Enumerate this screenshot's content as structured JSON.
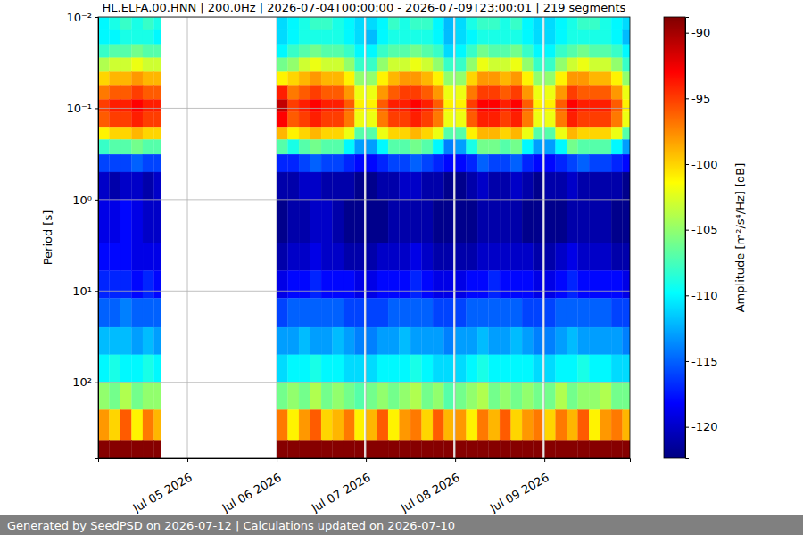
{
  "chart_data": {
    "type": "heatmap",
    "title": "HL.ELFA.00.HNN | 200.0Hz | 2026-07-04T00:00:00 - 2026-07-09T23:00:01 | 219 segments",
    "y_label": "Period [s]",
    "footer": "Generated by SeedPSD on 2026-07-12 | Calculations updated on 2026-07-10",
    "log": "y",
    "grid": true,
    "xlim": [
      "2026-07-04T00:00",
      "2026-07-09T23:00"
    ],
    "xticks": [
      {
        "value": "2026-07-05T00:00",
        "label": "Jul 05 2026"
      },
      {
        "value": "2026-07-06T00:00",
        "label": "Jul 06 2026"
      },
      {
        "value": "2026-07-07T00:00",
        "label": "Jul 07 2026"
      },
      {
        "value": "2026-07-08T00:00",
        "label": "Jul 08 2026"
      },
      {
        "value": "2026-07-09T00:00",
        "label": "Jul 09 2026"
      }
    ],
    "ylim": [
      0.01,
      680
    ],
    "yticks": [
      {
        "value": 0.01,
        "label": "10⁻²"
      },
      {
        "value": 0.1,
        "label": "10⁻¹"
      },
      {
        "value": 1,
        "label": "10⁰"
      },
      {
        "value": 10,
        "label": "10¹"
      },
      {
        "value": 100,
        "label": "10²"
      }
    ],
    "x_edges": [
      "2026-07-04T00:00",
      "2026-07-04T03:00",
      "2026-07-04T06:00",
      "2026-07-04T09:00",
      "2026-07-04T12:00",
      "2026-07-04T15:00",
      "2026-07-04T17:00",
      "2026-07-06T00:00",
      "2026-07-06T03:00",
      "2026-07-06T06:00",
      "2026-07-06T09:00",
      "2026-07-06T12:00",
      "2026-07-06T15:00",
      "2026-07-06T18:00",
      "2026-07-06T21:00",
      "2026-07-06T23:30",
      "2026-07-07T00:00",
      "2026-07-07T03:00",
      "2026-07-07T06:00",
      "2026-07-07T09:00",
      "2026-07-07T12:00",
      "2026-07-07T15:00",
      "2026-07-07T18:00",
      "2026-07-07T21:00",
      "2026-07-07T23:30",
      "2026-07-08T00:00",
      "2026-07-08T03:00",
      "2026-07-08T06:00",
      "2026-07-08T09:00",
      "2026-07-08T12:00",
      "2026-07-08T15:00",
      "2026-07-08T18:00",
      "2026-07-08T21:00",
      "2026-07-08T23:30",
      "2026-07-09T00:00",
      "2026-07-09T03:00",
      "2026-07-09T06:00",
      "2026-07-09T09:00",
      "2026-07-09T12:00",
      "2026-07-09T15:00",
      "2026-07-09T18:00",
      "2026-07-09T21:00",
      "2026-07-09T23:00"
    ],
    "y_edges": [
      0.01,
      0.014,
      0.02,
      0.028,
      0.04,
      0.056,
      0.08,
      0.11,
      0.16,
      0.22,
      0.32,
      0.5,
      1,
      3,
      6,
      12,
      25,
      50,
      100,
      200,
      440,
      680
    ],
    "cells": [
      [
        -110,
        -109,
        -108,
        -109,
        -108,
        -109,
        null,
        -111,
        -110,
        -109,
        -108,
        -108,
        -109,
        -110,
        -111,
        null,
        -111,
        -110,
        -108,
        -109,
        -108,
        -108,
        -110,
        -112,
        null,
        -111,
        -109,
        -108,
        -108,
        -109,
        -108,
        -110,
        -111,
        null,
        -111,
        -110,
        -109,
        -108,
        -108,
        -109,
        -110,
        -111
      ],
      [
        -110,
        -110,
        -109,
        -109,
        -109,
        -110,
        null,
        -111,
        -110,
        -109,
        -109,
        -109,
        -109,
        -110,
        -111,
        null,
        -112,
        -110,
        -109,
        -109,
        -109,
        -109,
        -110,
        -112,
        null,
        -111,
        -110,
        -109,
        -109,
        -109,
        -109,
        -110,
        -111,
        null,
        -111,
        -110,
        -109,
        -109,
        -109,
        -109,
        -110,
        -112
      ],
      [
        -108,
        -107,
        -107,
        -106,
        -107,
        -107,
        null,
        -110,
        -108,
        -107,
        -106,
        -107,
        -107,
        -108,
        -110,
        null,
        -110,
        -108,
        -107,
        -107,
        -106,
        -107,
        -108,
        -111,
        null,
        -110,
        -108,
        -106,
        -107,
        -107,
        -106,
        -108,
        -110,
        null,
        -110,
        -108,
        -107,
        -106,
        -107,
        -107,
        -108,
        -110
      ],
      [
        -104,
        -103,
        -103,
        -102,
        -103,
        -103,
        null,
        -106,
        -105,
        -103,
        -102,
        -103,
        -103,
        -105,
        -108,
        null,
        -108,
        -105,
        -103,
        -103,
        -102,
        -103,
        -105,
        -108,
        null,
        -108,
        -105,
        -102,
        -103,
        -103,
        -102,
        -105,
        -108,
        null,
        -108,
        -105,
        -103,
        -102,
        -103,
        -103,
        -105,
        -108
      ],
      [
        -100,
        -99,
        -99,
        -98,
        -99,
        -99,
        null,
        -101,
        -100,
        -99,
        -98,
        -99,
        -99,
        -101,
        -105,
        null,
        -105,
        -101,
        -99,
        -98,
        -98,
        -99,
        -101,
        -105,
        null,
        -105,
        -100,
        -98,
        -98,
        -99,
        -98,
        -101,
        -105,
        null,
        -105,
        -101,
        -98,
        -98,
        -99,
        -99,
        -101,
        -105
      ],
      [
        -97,
        -96,
        -96,
        -95,
        -96,
        -96,
        null,
        -94,
        -97,
        -96,
        -95,
        -96,
        -96,
        -98,
        -102,
        null,
        -102,
        -98,
        -96,
        -95,
        -95,
        -96,
        -98,
        -102,
        null,
        -102,
        -97,
        -95,
        -95,
        -96,
        -95,
        -98,
        -102,
        null,
        -102,
        -98,
        -95,
        -96,
        -96,
        -96,
        -98,
        -102
      ],
      [
        -95,
        -94,
        -94,
        -93,
        -94,
        -94,
        null,
        -91,
        -95,
        -94,
        -93,
        -94,
        -94,
        -96,
        -101,
        null,
        -101,
        -96,
        -94,
        -94,
        -93,
        -94,
        -96,
        -101,
        null,
        -101,
        -95,
        -93,
        -93,
        -94,
        -93,
        -96,
        -101,
        null,
        -101,
        -96,
        -93,
        -94,
        -94,
        -94,
        -96,
        -101
      ],
      [
        -96,
        -95,
        -95,
        -94,
        -95,
        -95,
        null,
        -93,
        -96,
        -95,
        -94,
        -95,
        -95,
        -97,
        -102,
        null,
        -102,
        -97,
        -95,
        -95,
        -94,
        -95,
        -97,
        -102,
        null,
        -102,
        -96,
        -94,
        -94,
        -95,
        -94,
        -97,
        -102,
        null,
        -102,
        -97,
        -94,
        -95,
        -95,
        -95,
        -97,
        -102
      ],
      [
        -101,
        -100,
        -100,
        -99,
        -100,
        -100,
        null,
        -99,
        -101,
        -100,
        -99,
        -100,
        -100,
        -102,
        -107,
        null,
        -107,
        -102,
        -100,
        -100,
        -99,
        -100,
        -102,
        -107,
        null,
        -107,
        -101,
        -99,
        -99,
        -100,
        -99,
        -102,
        -107,
        null,
        -107,
        -102,
        -99,
        -100,
        -100,
        -100,
        -102,
        -107
      ],
      [
        -108,
        -107,
        -107,
        -106,
        -107,
        -107,
        null,
        -107,
        -109,
        -107,
        -106,
        -107,
        -107,
        -110,
        -113,
        null,
        -113,
        -110,
        -107,
        -107,
        -106,
        -107,
        -110,
        -114,
        null,
        -113,
        -109,
        -106,
        -106,
        -107,
        -106,
        -110,
        -113,
        null,
        -113,
        -110,
        -106,
        -107,
        -107,
        -107,
        -110,
        -113
      ],
      [
        -116,
        -116,
        -116,
        -115,
        -116,
        -116,
        null,
        -117,
        -117,
        -116,
        -115,
        -116,
        -116,
        -117,
        -118,
        null,
        -118,
        -117,
        -116,
        -116,
        -115,
        -116,
        -117,
        -118,
        null,
        -118,
        -117,
        -115,
        -116,
        -116,
        -115,
        -117,
        -118,
        null,
        -118,
        -117,
        -116,
        -115,
        -116,
        -116,
        -117,
        -118
      ],
      [
        -120,
        -121,
        -120,
        -120,
        -121,
        -120,
        null,
        -121,
        -121,
        -120,
        -120,
        -121,
        -121,
        -121,
        -122,
        null,
        -122,
        -121,
        -121,
        -120,
        -120,
        -121,
        -121,
        -122,
        null,
        -122,
        -121,
        -120,
        -121,
        -121,
        -120,
        -121,
        -122,
        null,
        -121,
        -121,
        -120,
        -121,
        -121,
        -121,
        -121,
        -122
      ],
      [
        -119,
        -119,
        -118,
        -119,
        -120,
        -120,
        null,
        -122,
        -121,
        -121,
        -120,
        -120,
        -121,
        -122,
        -122,
        null,
        -122,
        -122,
        -121,
        -121,
        -121,
        -121,
        -122,
        -122,
        null,
        -122,
        -122,
        -121,
        -121,
        -121,
        -121,
        -122,
        -122,
        null,
        -122,
        -122,
        -121,
        -121,
        -121,
        -121,
        -122,
        -122
      ],
      [
        -118,
        -118,
        -118,
        -119,
        -119,
        -119,
        null,
        -121,
        -120,
        -120,
        -119,
        -120,
        -120,
        -121,
        -121,
        null,
        -121,
        -120,
        -120,
        -120,
        -119,
        -120,
        -121,
        -121,
        null,
        -121,
        -121,
        -120,
        -120,
        -120,
        -120,
        -120,
        -121,
        null,
        -121,
        -120,
        -119,
        -120,
        -120,
        -120,
        -121,
        -121
      ],
      [
        -117,
        -117,
        -117,
        -118,
        -117,
        -118,
        null,
        -119,
        -118,
        -118,
        -117,
        -118,
        -118,
        -118,
        -119,
        null,
        -119,
        -118,
        -118,
        -118,
        -117,
        -118,
        -119,
        -119,
        null,
        -119,
        -118,
        -118,
        -117,
        -118,
        -118,
        -118,
        -119,
        null,
        -119,
        -118,
        -117,
        -118,
        -118,
        -118,
        -118,
        -119
      ],
      [
        -115,
        -115,
        -114,
        -115,
        -115,
        -115,
        null,
        -116,
        -115,
        -115,
        -115,
        -115,
        -115,
        -116,
        -116,
        null,
        -116,
        -116,
        -115,
        -115,
        -115,
        -115,
        -116,
        -116,
        null,
        -116,
        -115,
        -115,
        -115,
        -115,
        -115,
        -116,
        -116,
        null,
        -116,
        -115,
        -115,
        -115,
        -115,
        -115,
        -116,
        -116
      ],
      [
        -112,
        -112,
        -112,
        -113,
        -112,
        -113,
        null,
        -113,
        -113,
        -112,
        -113,
        -113,
        -112,
        -113,
        -114,
        null,
        -114,
        -113,
        -113,
        -112,
        -113,
        -113,
        -113,
        -114,
        null,
        -113,
        -113,
        -112,
        -113,
        -113,
        -112,
        -113,
        -114,
        null,
        -114,
        -113,
        -112,
        -113,
        -113,
        -113,
        -113,
        -114
      ],
      [
        -110,
        -109,
        -110,
        -110,
        -109,
        -110,
        null,
        -111,
        -110,
        -110,
        -109,
        -110,
        -110,
        -111,
        -111,
        null,
        -111,
        -110,
        -110,
        -110,
        -109,
        -110,
        -111,
        -111,
        null,
        -111,
        -110,
        -109,
        -110,
        -110,
        -110,
        -110,
        -111,
        null,
        -111,
        -110,
        -110,
        -109,
        -110,
        -110,
        -111,
        -111
      ],
      [
        -105,
        -106,
        -104,
        -106,
        -105,
        -105,
        null,
        -106,
        -105,
        -106,
        -104,
        -106,
        -105,
        -106,
        -107,
        null,
        -106,
        -105,
        -106,
        -105,
        -104,
        -106,
        -105,
        -107,
        null,
        -106,
        -105,
        -104,
        -106,
        -105,
        -106,
        -105,
        -106,
        null,
        -106,
        -104,
        -106,
        -105,
        -105,
        -104,
        -106,
        -106
      ],
      [
        -98,
        -100,
        -96,
        -101,
        -97,
        -99,
        null,
        -97,
        -101,
        -98,
        -96,
        -100,
        -99,
        -97,
        -101,
        null,
        -99,
        -96,
        -101,
        -98,
        -97,
        -100,
        -96,
        -99,
        null,
        -98,
        -101,
        -97,
        -99,
        -96,
        -100,
        -98,
        -97,
        null,
        -100,
        -97,
        -99,
        -96,
        -101,
        -98,
        -97,
        -99
      ],
      [
        -89,
        -89,
        -89,
        -89,
        -89,
        -89,
        null,
        -89,
        -89,
        -89,
        -89,
        -89,
        -89,
        -89,
        -89,
        null,
        -89,
        -89,
        -89,
        -89,
        -89,
        -89,
        -89,
        -89,
        null,
        -89,
        -89,
        -89,
        -89,
        -89,
        -89,
        -89,
        -89,
        null,
        -89,
        -89,
        -89,
        -89,
        -89,
        -89,
        -89,
        -89
      ]
    ],
    "colorbar": {
      "label": "Amplitude [m²/s⁴/Hz] [dB]",
      "range": [
        -122.4,
        -88.8
      ],
      "ticks": [
        -90,
        -95,
        -100,
        -105,
        -110,
        -115,
        -120
      ]
    }
  }
}
